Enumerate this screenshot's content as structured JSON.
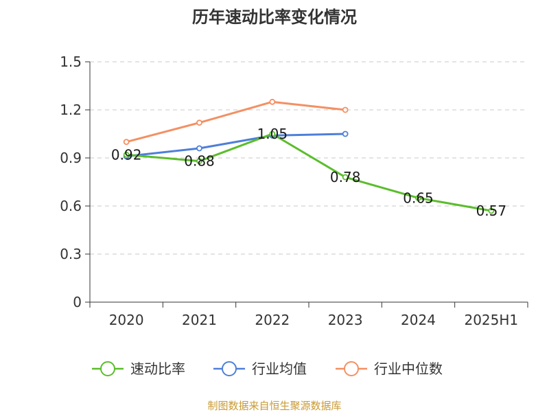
{
  "chart_data": {
    "type": "line",
    "title": "历年速动比率变化情况",
    "categories": [
      "2020",
      "2021",
      "2022",
      "2023",
      "2024",
      "2025H1"
    ],
    "ylim": [
      0,
      1.5
    ],
    "yticks": [
      "0",
      "0.3",
      "0.6",
      "0.9",
      "1.2",
      "1.5"
    ],
    "grid": true,
    "legend_position": "bottom",
    "series": [
      {
        "name": "速动比率",
        "color": "#5bbd2b",
        "values": [
          0.92,
          0.88,
          1.05,
          0.78,
          0.65,
          0.57
        ],
        "labels": [
          "0.92",
          "0.88",
          "1.05",
          "0.78",
          "0.65",
          "0.57"
        ]
      },
      {
        "name": "行业均值",
        "color": "#4e7fd8",
        "values": [
          0.91,
          0.96,
          1.04,
          1.05,
          null,
          null
        ]
      },
      {
        "name": "行业中位数",
        "color": "#f39063",
        "values": [
          1.0,
          1.12,
          1.25,
          1.2,
          null,
          null
        ]
      }
    ],
    "source": "制图数据来自恒生聚源数据库"
  }
}
